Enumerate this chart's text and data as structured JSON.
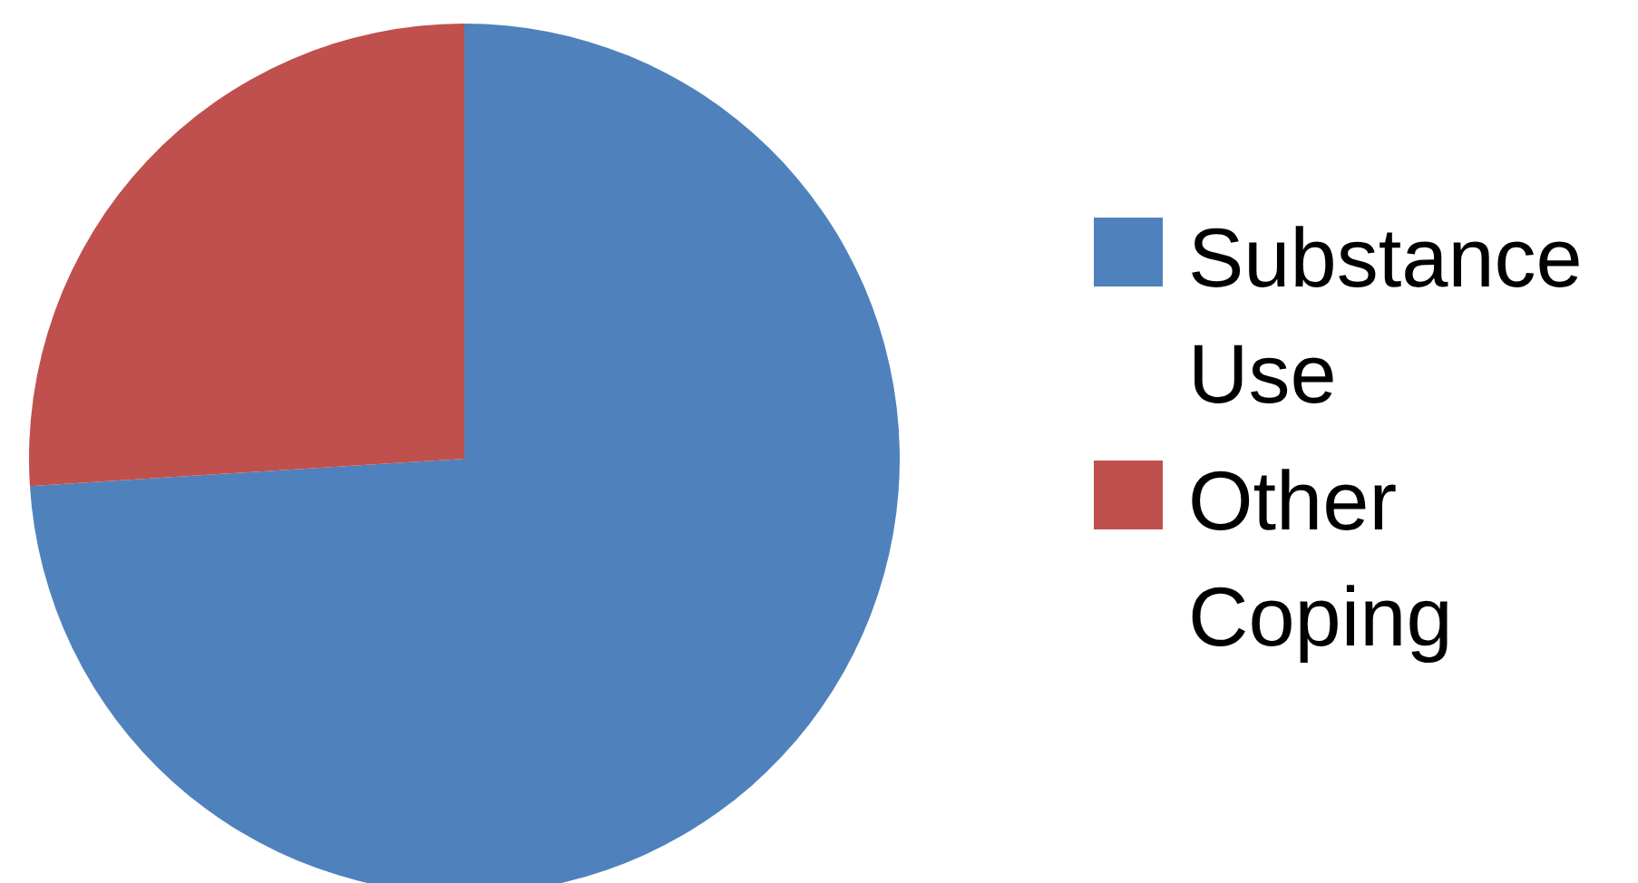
{
  "chart_data": {
    "type": "pie",
    "categories": [
      "Substance Use",
      "Other Coping"
    ],
    "values": [
      74,
      26
    ],
    "colors": [
      "#4f81bd",
      "#c0504d"
    ],
    "legend": "right"
  }
}
